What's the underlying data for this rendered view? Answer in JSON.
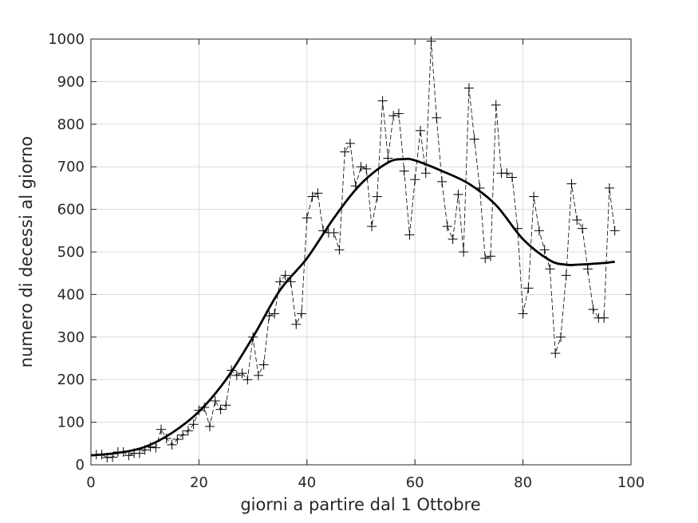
{
  "chart_data": {
    "type": "line",
    "xlabel": "giorni a partire dal 1 Ottobre",
    "ylabel": "numero di decessi al giorno",
    "xlim": [
      0,
      100
    ],
    "ylim": [
      0,
      1000
    ],
    "xticks": [
      "0",
      "20",
      "40",
      "60",
      "80",
      "100"
    ],
    "yticks": [
      "0",
      "100",
      "200",
      "300",
      "400",
      "500",
      "600",
      "700",
      "800",
      "900",
      "1000"
    ],
    "grid": true,
    "series": [
      {
        "style": "dashed-with-plus-markers",
        "color": "#000000",
        "x": [
          1,
          2,
          3,
          4,
          5,
          6,
          7,
          8,
          9,
          10,
          11,
          12,
          13,
          14,
          15,
          16,
          17,
          18,
          19,
          20,
          21,
          22,
          23,
          24,
          25,
          26,
          27,
          28,
          29,
          30,
          31,
          32,
          33,
          34,
          35,
          36,
          37,
          38,
          39,
          40,
          41,
          42,
          43,
          44,
          45,
          46,
          47,
          48,
          49,
          50,
          51,
          52,
          53,
          54,
          55,
          56,
          57,
          58,
          59,
          60,
          61,
          62,
          63,
          64,
          65,
          66,
          67,
          68,
          69,
          70,
          71,
          72,
          73,
          74,
          75,
          76,
          77,
          78,
          79,
          80,
          81,
          82,
          83,
          84,
          85,
          86,
          87,
          88,
          89,
          90,
          91,
          92,
          93,
          94,
          95,
          96,
          97
        ],
        "y": [
          24,
          24,
          17,
          18,
          30,
          30,
          22,
          27,
          27,
          35,
          42,
          40,
          83,
          62,
          47,
          60,
          70,
          80,
          95,
          128,
          135,
          90,
          150,
          130,
          140,
          222,
          210,
          215,
          200,
          300,
          210,
          235,
          350,
          355,
          430,
          445,
          430,
          330,
          355,
          580,
          630,
          638,
          550,
          545,
          545,
          505,
          735,
          755,
          655,
          700,
          695,
          560,
          630,
          855,
          720,
          820,
          825,
          690,
          540,
          670,
          785,
          685,
          995,
          815,
          665,
          560,
          530,
          635,
          500,
          885,
          765,
          650,
          485,
          490,
          845,
          685,
          685,
          675,
          555,
          355,
          415,
          630,
          550,
          505,
          460,
          262,
          300,
          445,
          660,
          575,
          555,
          460,
          365,
          345,
          345,
          650,
          550
        ]
      },
      {
        "style": "solid-smoothed",
        "color": "#000000",
        "x": [
          0,
          5,
          10,
          15,
          20,
          25,
          30,
          35,
          40,
          45,
          50,
          55,
          58,
          60,
          65,
          70,
          75,
          80,
          85,
          88,
          90,
          95,
          97
        ],
        "y": [
          22,
          28,
          42,
          75,
          125,
          200,
          300,
          410,
          485,
          580,
          660,
          710,
          718,
          715,
          690,
          660,
          610,
          530,
          480,
          470,
          470,
          474,
          477
        ]
      }
    ]
  }
}
